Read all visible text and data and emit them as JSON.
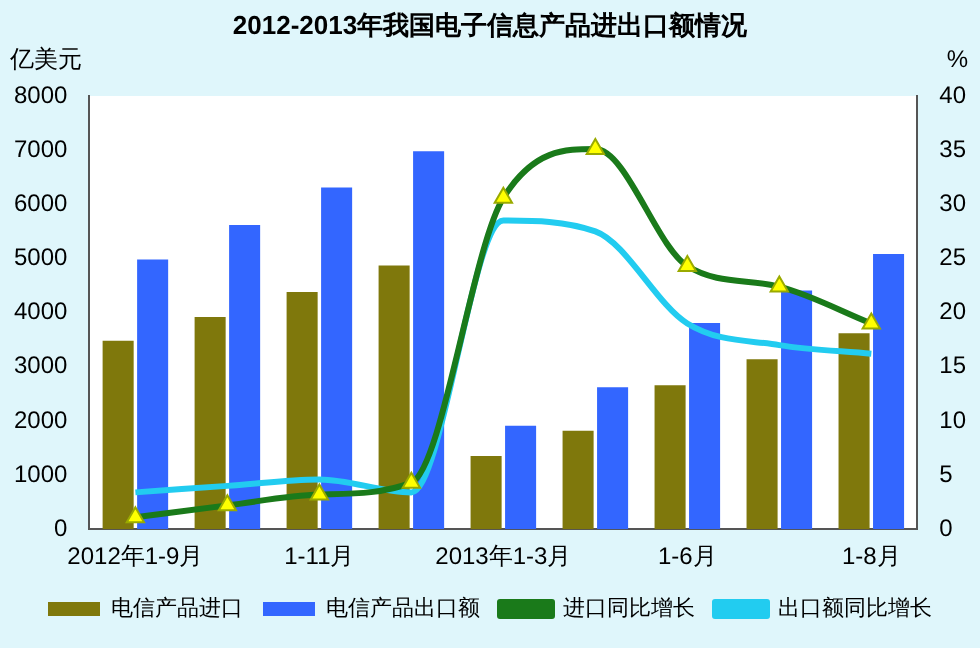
{
  "chart_data": {
    "type": "bar",
    "title": "2012-2013年我国电子信息产品进出口额情况",
    "ylabel": "亿美元",
    "y2label": "%",
    "categories": [
      "2012年1-9月",
      null,
      "1-11月",
      null,
      "2013年1-3月",
      null,
      "1-6月",
      null,
      "1-8月"
    ],
    "series": [
      {
        "name": "电信产品进口",
        "color": "#7f780c",
        "values": [
          3480,
          3920,
          4380,
          4870,
          1350,
          1820,
          2660,
          3140,
          3620
        ]
      },
      {
        "name": "电信产品出口额",
        "color": "#3366ff",
        "values": [
          4980,
          5620,
          6310,
          6980,
          1910,
          2620,
          3810,
          4410,
          5080
        ]
      },
      {
        "name": "进口同比增长",
        "type": "line",
        "axis": "y2",
        "color": "#1a7a1a",
        "marker": "triangle",
        "values": [
          1.1,
          2.2,
          3.2,
          4.3,
          30.6,
          35.1,
          24.3,
          22.4,
          19.0
        ]
      },
      {
        "name": "出口额同比增长",
        "type": "line",
        "axis": "y2",
        "color": "#22ccf0",
        "marker": "none",
        "values": [
          3.4,
          4.0,
          4.6,
          3.4,
          28.5,
          27.5,
          19.0,
          17.0,
          16.2
        ]
      }
    ],
    "ylim": [
      0,
      8000
    ],
    "yticks": [
      0,
      1000,
      2000,
      3000,
      4000,
      5000,
      6000,
      7000,
      8000
    ],
    "y2lim": [
      0,
      40
    ],
    "y2ticks": [
      0,
      5,
      10,
      15,
      20,
      25,
      30,
      35,
      40
    ],
    "grid": false,
    "legend": "bottom"
  }
}
